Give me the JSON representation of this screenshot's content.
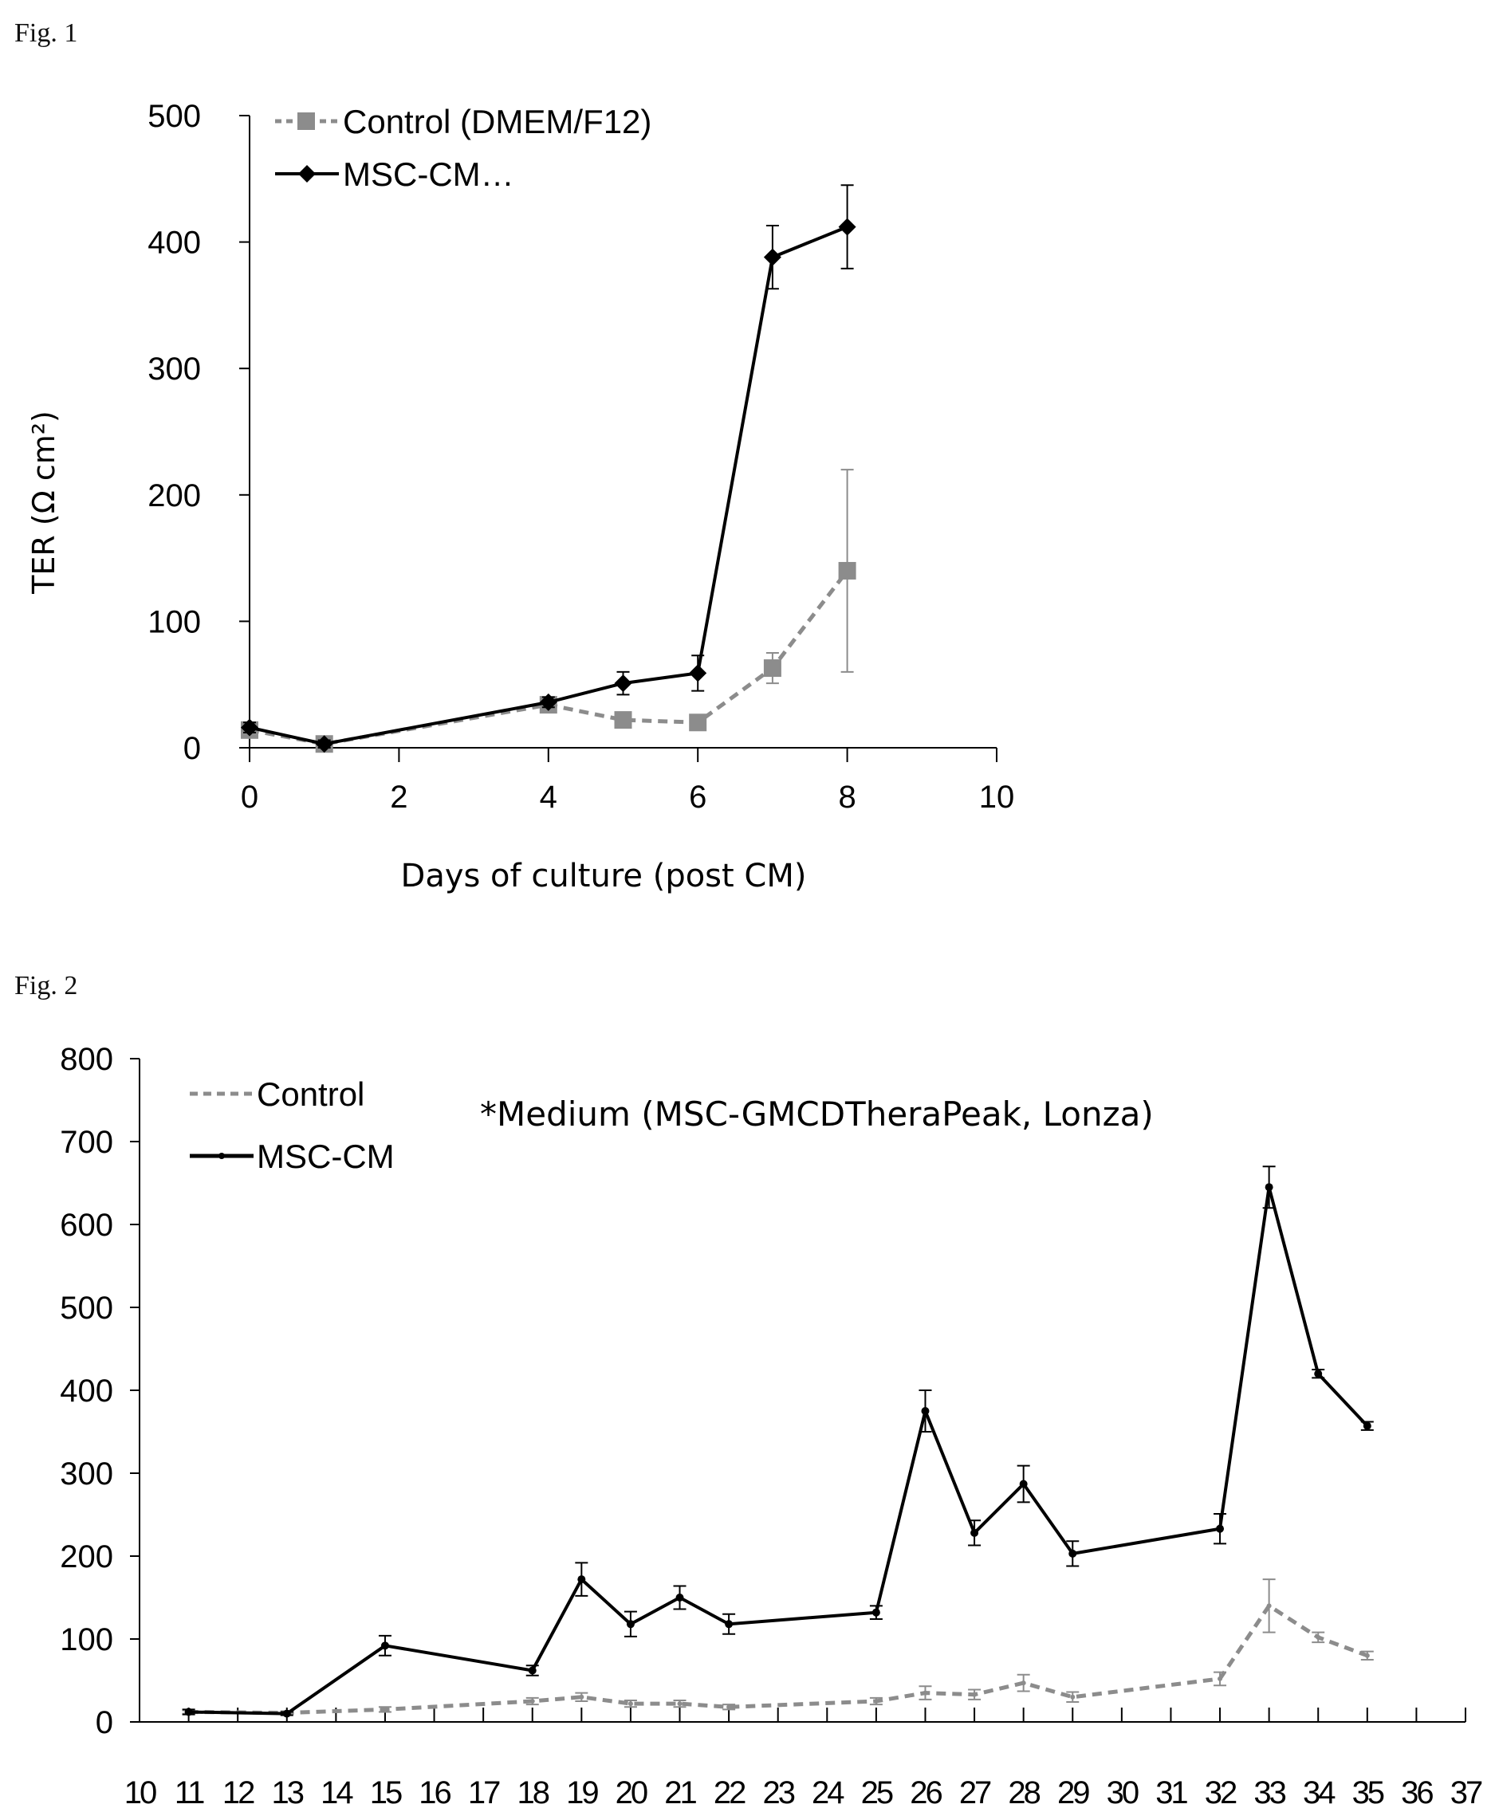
{
  "figures": [
    {
      "label": "Fig. 1"
    },
    {
      "label": "Fig. 2"
    }
  ],
  "chart_data": [
    {
      "type": "line",
      "title": "",
      "xlabel": "Days of culture (post CM)",
      "ylabel": "TER (Ω cm²)",
      "xlim": [
        0,
        10
      ],
      "ylim": [
        0,
        500
      ],
      "xticks": [
        "0",
        "2",
        "4",
        "6",
        "8",
        "10"
      ],
      "yticks": [
        "0",
        "100",
        "200",
        "300",
        "400",
        "500"
      ],
      "grid": false,
      "legend_position": "top-left",
      "series": [
        {
          "name": "Control (DMEM/F12)",
          "style": "dashed",
          "marker": "square",
          "color": "#8c8c8c",
          "x": [
            0,
            1,
            4,
            5,
            6,
            7,
            8
          ],
          "y": [
            14,
            3,
            34,
            22,
            20,
            63,
            140
          ],
          "err": [
            4,
            3,
            5,
            4,
            4,
            12,
            80
          ]
        },
        {
          "name": "MSC-CM…",
          "style": "solid",
          "marker": "diamond",
          "color": "#000000",
          "x": [
            0,
            1,
            4,
            5,
            6,
            7,
            8
          ],
          "y": [
            16,
            3,
            36,
            51,
            59,
            388,
            412
          ],
          "err": [
            4,
            3,
            4,
            9,
            14,
            25,
            33
          ]
        }
      ]
    },
    {
      "type": "line",
      "title": "",
      "annotation": "*Medium (MSC-GMCDTheraPeak,  Lonza)",
      "xlabel": "",
      "ylabel": "",
      "xlim": [
        10,
        37
      ],
      "ylim": [
        0,
        800
      ],
      "xticks": [
        "10",
        "11",
        "12",
        "13",
        "14",
        "15",
        "16",
        "17",
        "18",
        "19",
        "20",
        "21",
        "22",
        "23",
        "24",
        "25",
        "26",
        "27",
        "28",
        "29",
        "30",
        "31",
        "32",
        "33",
        "34",
        "35",
        "36",
        "37"
      ],
      "yticks": [
        "0",
        "100",
        "200",
        "300",
        "400",
        "500",
        "600",
        "700",
        "800"
      ],
      "grid": false,
      "legend_position": "top-left",
      "series": [
        {
          "name": "Control",
          "style": "dashed",
          "marker": "none",
          "color": "#8c8c8c",
          "x": [
            11,
            13,
            15,
            18,
            19,
            20,
            21,
            22,
            25,
            26,
            27,
            28,
            29,
            32,
            33,
            34,
            35
          ],
          "y": [
            12,
            11,
            15,
            25,
            30,
            22,
            22,
            18,
            25,
            35,
            33,
            47,
            30,
            52,
            140,
            102,
            80
          ],
          "err": [
            2,
            2,
            3,
            4,
            5,
            4,
            4,
            3,
            4,
            8,
            6,
            10,
            6,
            8,
            32,
            6,
            5
          ]
        },
        {
          "name": "MSC-CM",
          "style": "solid",
          "marker": "dot",
          "color": "#000000",
          "x": [
            11,
            13,
            15,
            18,
            19,
            20,
            21,
            22,
            25,
            26,
            27,
            28,
            29,
            32,
            33,
            34,
            35
          ],
          "y": [
            12,
            10,
            92,
            62,
            172,
            118,
            150,
            118,
            132,
            375,
            228,
            287,
            203,
            233,
            645,
            420,
            357
          ],
          "err": [
            3,
            2,
            12,
            6,
            20,
            15,
            14,
            12,
            8,
            25,
            15,
            22,
            15,
            18,
            25,
            5,
            5
          ]
        }
      ]
    }
  ]
}
